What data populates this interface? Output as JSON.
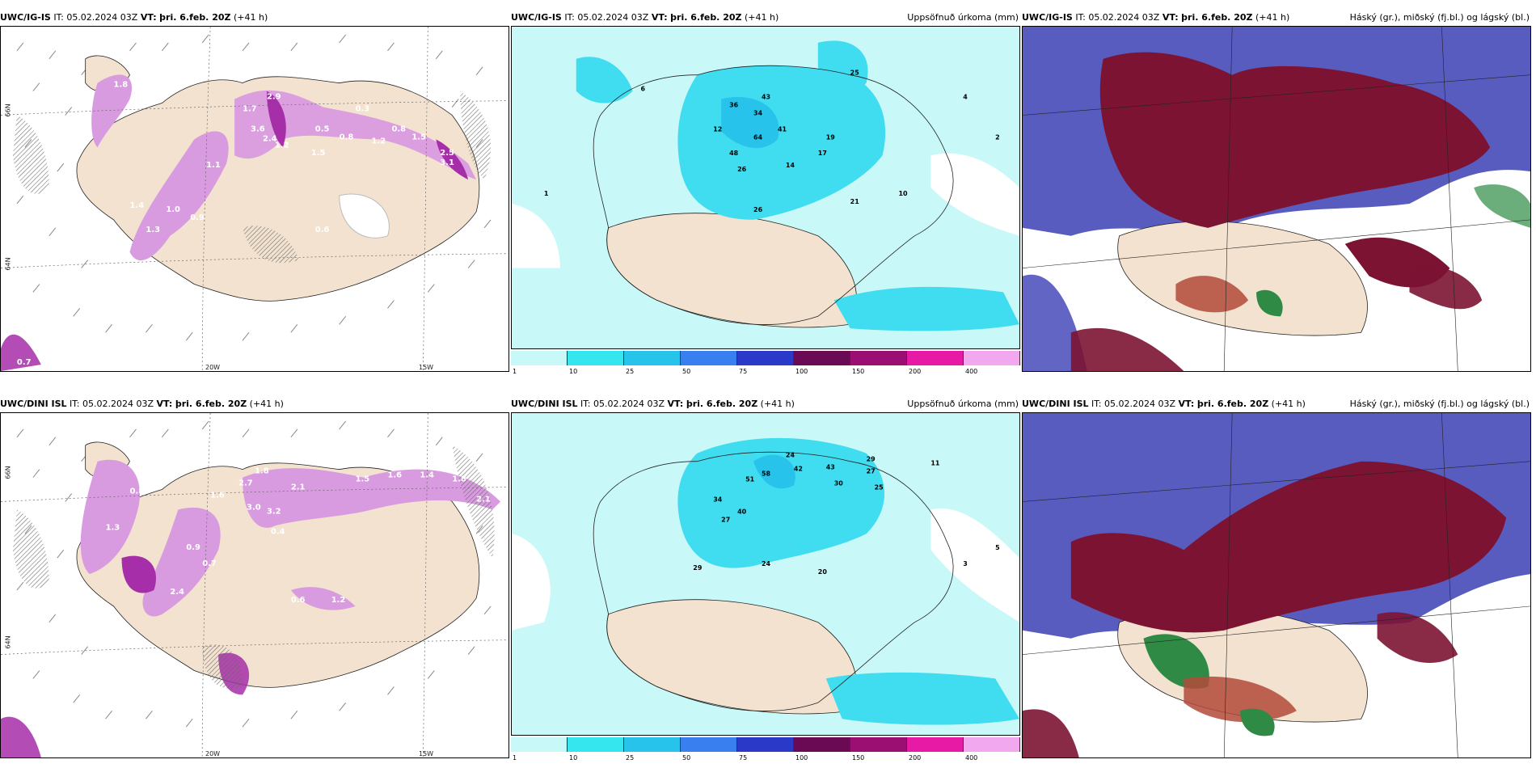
{
  "colors": {
    "land": "#f2e2cf",
    "snow_light": "#d99be0",
    "snow_strong": "#a62ea8",
    "precip_light": "#b9f5f5",
    "precip_mid": "#40dcf0",
    "cloud_high": "#7c1333",
    "cloud_mid": "#3b3fb4",
    "cloud_low": "#2e8a45"
  },
  "rows": [
    {
      "model": "UWC/IG-IS",
      "it": "IT: 05.02.2024 03Z",
      "vt_label": "VT:",
      "vt_value": "þri. 6.feb. 20Z",
      "lead": "(+41 h)",
      "panels": [
        {
          "right": ""
        },
        {
          "right": "Uppsöfnuð úrkoma (mm)"
        },
        {
          "right": "Háský (gr.), miðský (fj.bl.) og lágský (bl.)"
        }
      ],
      "lon_labels": [
        "20W",
        "15W"
      ],
      "lat_label": "66N",
      "lat_label2": "64N"
    },
    {
      "model": "UWC/DINI ISL",
      "it": "IT: 05.02.2024 03Z",
      "vt_label": "VT:",
      "vt_value": "þri. 6.feb. 20Z",
      "lead": "(+41 h)",
      "panels": [
        {
          "right": ""
        },
        {
          "right": "Uppsöfnuð úrkoma (mm)"
        },
        {
          "right": "Háský (gr.), miðský (fj.bl.) og lágský (bl.)"
        }
      ],
      "lon_labels": [
        "20W",
        "15W"
      ],
      "lat_label": "66N",
      "lat_label2": "64N"
    }
  ],
  "colorbar": {
    "labels": [
      "1",
      "10",
      "25",
      "50",
      "75",
      "100",
      "150",
      "200",
      "400"
    ],
    "colors": [
      "#c8f8f8",
      "#36e6ee",
      "#27c3ea",
      "#3a7ff0",
      "#2a39c8",
      "#6a0a55",
      "#9b0f72",
      "#e71aa6",
      "#f2a8ee"
    ]
  },
  "snow_labels_row1": [
    "1.8",
    "2.9",
    "1.7",
    "3.6",
    "2.4",
    "0.5",
    "0.3",
    "0.8",
    "1.2",
    "1.5",
    "2.5",
    "3.1",
    "1.1",
    "1.0",
    "1.4",
    "0.9",
    "1.5",
    "0.6",
    "1.3",
    "0.7",
    "1.2",
    "0.8"
  ],
  "snow_labels_row2": [
    "2.7",
    "3.0",
    "1.6",
    "3.2",
    "1.8",
    "2.1",
    "1.5",
    "1.6",
    "1.8",
    "1.4",
    "2.1",
    "0.8",
    "1.3",
    "0.7",
    "2.4",
    "0.9",
    "1.2",
    "0.6",
    "0.4"
  ],
  "precip_labels_row1": [
    "12",
    "26",
    "34",
    "36",
    "43",
    "64",
    "48",
    "41",
    "14",
    "19",
    "25",
    "26",
    "21",
    "17",
    "10",
    "6",
    "4",
    "2",
    "1"
  ],
  "precip_labels_row2": [
    "24",
    "42",
    "43",
    "30",
    "29",
    "27",
    "25",
    "51",
    "58",
    "34",
    "27",
    "40",
    "29",
    "24",
    "20",
    "11",
    "3",
    "5"
  ]
}
